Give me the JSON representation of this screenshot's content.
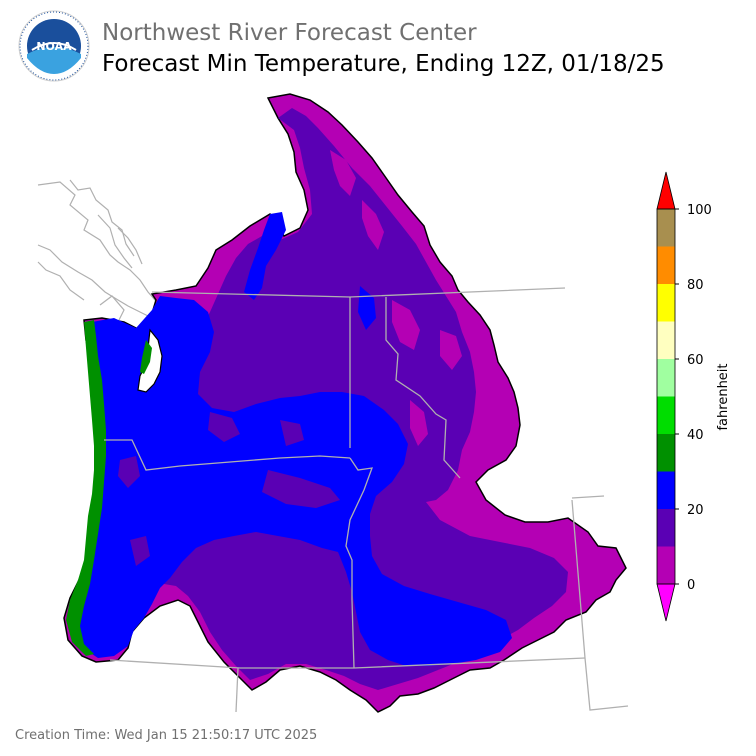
{
  "header": {
    "org": "Northwest River Forecast Center",
    "title": "Forecast Min Temperature, Ending 12Z, 01/18/25"
  },
  "logo": {
    "text": "NOAA"
  },
  "colorbar": {
    "label": "fahrenheit",
    "ticks": [
      "100",
      "80",
      "60",
      "40",
      "20",
      "0"
    ],
    "bins": [
      {
        "from": 90,
        "to": 100,
        "color": "#a88f4f"
      },
      {
        "from": 80,
        "to": 90,
        "color": "#ff8c00"
      },
      {
        "from": 70,
        "to": 80,
        "color": "#ffff00"
      },
      {
        "from": 60,
        "to": 70,
        "color": "#ffffc0"
      },
      {
        "from": 50,
        "to": 60,
        "color": "#a0ffa0"
      },
      {
        "from": 40,
        "to": 50,
        "color": "#00dd00"
      },
      {
        "from": 30,
        "to": 40,
        "color": "#009000"
      },
      {
        "from": 20,
        "to": 30,
        "color": "#0000ff"
      },
      {
        "from": 10,
        "to": 20,
        "color": "#5a00b4"
      },
      {
        "from": 0,
        "to": 10,
        "color": "#b400b4"
      }
    ],
    "over_color": "#ff0000",
    "under_color": "#ff00ff"
  },
  "footer": {
    "creation": "Creation Time: Wed Jan 15 21:50:17 UTC 2025"
  }
}
